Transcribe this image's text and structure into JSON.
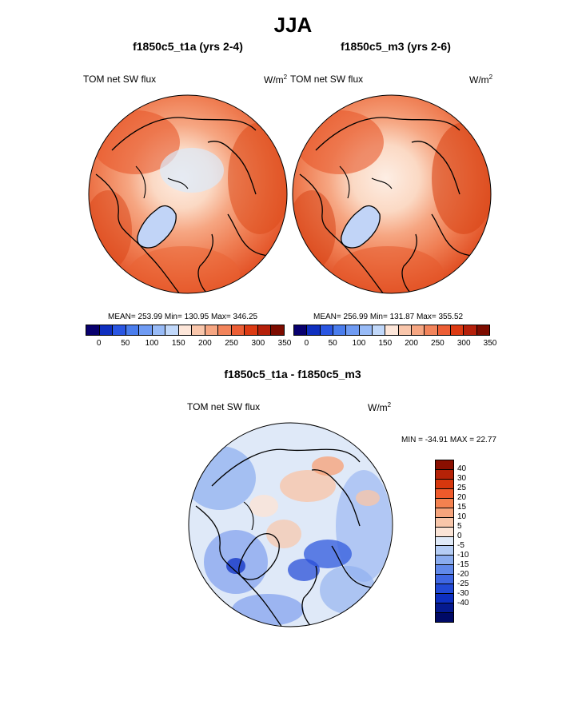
{
  "title": "JJA",
  "panels": [
    {
      "title": "f1850c5_t1a (yrs 2-4)",
      "left_label": "TOM net SW flux",
      "units_base": "W/m",
      "units_exp": "2",
      "stats": "MEAN= 253.99  Min= 130.95  Max= 346.25"
    },
    {
      "title": "f1850c5_m3 (yrs 2-6)",
      "left_label": "TOM net SW flux",
      "units_base": "W/m",
      "units_exp": "2",
      "stats": "MEAN= 256.99  Min= 131.87  Max= 355.52"
    }
  ],
  "colorbar_top": {
    "colors": [
      "#08006e",
      "#0f2fbf",
      "#2a56e2",
      "#4a7ded",
      "#6f9bf3",
      "#98bbf7",
      "#c1d8fa",
      "#fde6d9",
      "#f9c6ab",
      "#f6a682",
      "#f2845b",
      "#ec5e35",
      "#dc3a13",
      "#b5200a",
      "#7d0c00"
    ],
    "tick_labels": [
      "0",
      "50",
      "100",
      "150",
      "200",
      "250",
      "300",
      "350"
    ]
  },
  "diff_panel": {
    "title": "f1850c5_t1a - f1850c5_m3",
    "left_label": "TOM net SW flux",
    "units_base": "W/m",
    "units_exp": "2",
    "minmax": "MIN = -34.91 MAX =  22.77"
  },
  "colorbar_diff": {
    "colors": [
      "#8a0f00",
      "#b52207",
      "#d6370d",
      "#ef5a2b",
      "#f4814f",
      "#f6a47c",
      "#f8c6aa",
      "#fbe4d6",
      "#e0eaf8",
      "#b5cdf5",
      "#8aacef",
      "#6189ea",
      "#3f67e3",
      "#224ad6",
      "#0d2fc0",
      "#051a8f",
      "#000a66"
    ],
    "tick_labels": [
      "40",
      "30",
      "25",
      "20",
      "15",
      "10",
      "5",
      "0",
      "-5",
      "-10",
      "-15",
      "-20",
      "-25",
      "-30",
      "-40"
    ]
  }
}
